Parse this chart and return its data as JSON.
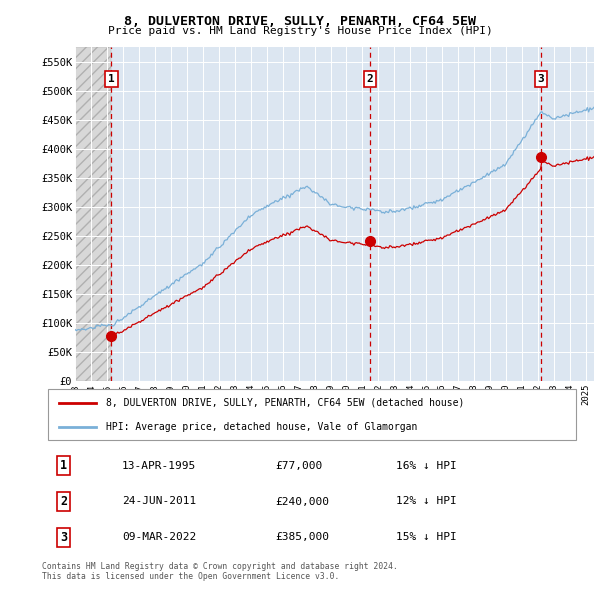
{
  "title": "8, DULVERTON DRIVE, SULLY, PENARTH, CF64 5EW",
  "subtitle": "Price paid vs. HM Land Registry's House Price Index (HPI)",
  "legend_line1": "8, DULVERTON DRIVE, SULLY, PENARTH, CF64 5EW (detached house)",
  "legend_line2": "HPI: Average price, detached house, Vale of Glamorgan",
  "footnote1": "Contains HM Land Registry data © Crown copyright and database right 2024.",
  "footnote2": "This data is licensed under the Open Government Licence v3.0.",
  "transactions": [
    {
      "label": "1",
      "date": "13-APR-1995",
      "price": 77000,
      "hpi_pct": "16% ↓ HPI",
      "x": 1995.28
    },
    {
      "label": "2",
      "date": "24-JUN-2011",
      "price": 240000,
      "hpi_pct": "12% ↓ HPI",
      "x": 2011.48
    },
    {
      "label": "3",
      "date": "09-MAR-2022",
      "price": 385000,
      "hpi_pct": "15% ↓ HPI",
      "x": 2022.19
    }
  ],
  "hpi_color": "#7ab0d8",
  "price_color": "#cc0000",
  "background_color": "#dce6f1",
  "grid_color": "#ffffff",
  "ylim": [
    0,
    575000
  ],
  "xlim_left": 1993.0,
  "xlim_right": 2025.5,
  "yticks": [
    0,
    50000,
    100000,
    150000,
    200000,
    250000,
    300000,
    350000,
    400000,
    450000,
    500000,
    550000
  ],
  "ytick_labels": [
    "£0",
    "£50K",
    "£100K",
    "£150K",
    "£200K",
    "£250K",
    "£300K",
    "£350K",
    "£400K",
    "£450K",
    "£500K",
    "£550K"
  ],
  "xticks": [
    1993,
    1994,
    1995,
    1996,
    1997,
    1998,
    1999,
    2000,
    2001,
    2002,
    2003,
    2004,
    2005,
    2006,
    2007,
    2008,
    2009,
    2010,
    2011,
    2012,
    2013,
    2014,
    2015,
    2016,
    2017,
    2018,
    2019,
    2020,
    2021,
    2022,
    2023,
    2024,
    2025
  ],
  "table_rows": [
    [
      "1",
      "13-APR-1995",
      "£77,000",
      "16% ↓ HPI"
    ],
    [
      "2",
      "24-JUN-2011",
      "£240,000",
      "12% ↓ HPI"
    ],
    [
      "3",
      "09-MAR-2022",
      "£385,000",
      "15% ↓ HPI"
    ]
  ]
}
